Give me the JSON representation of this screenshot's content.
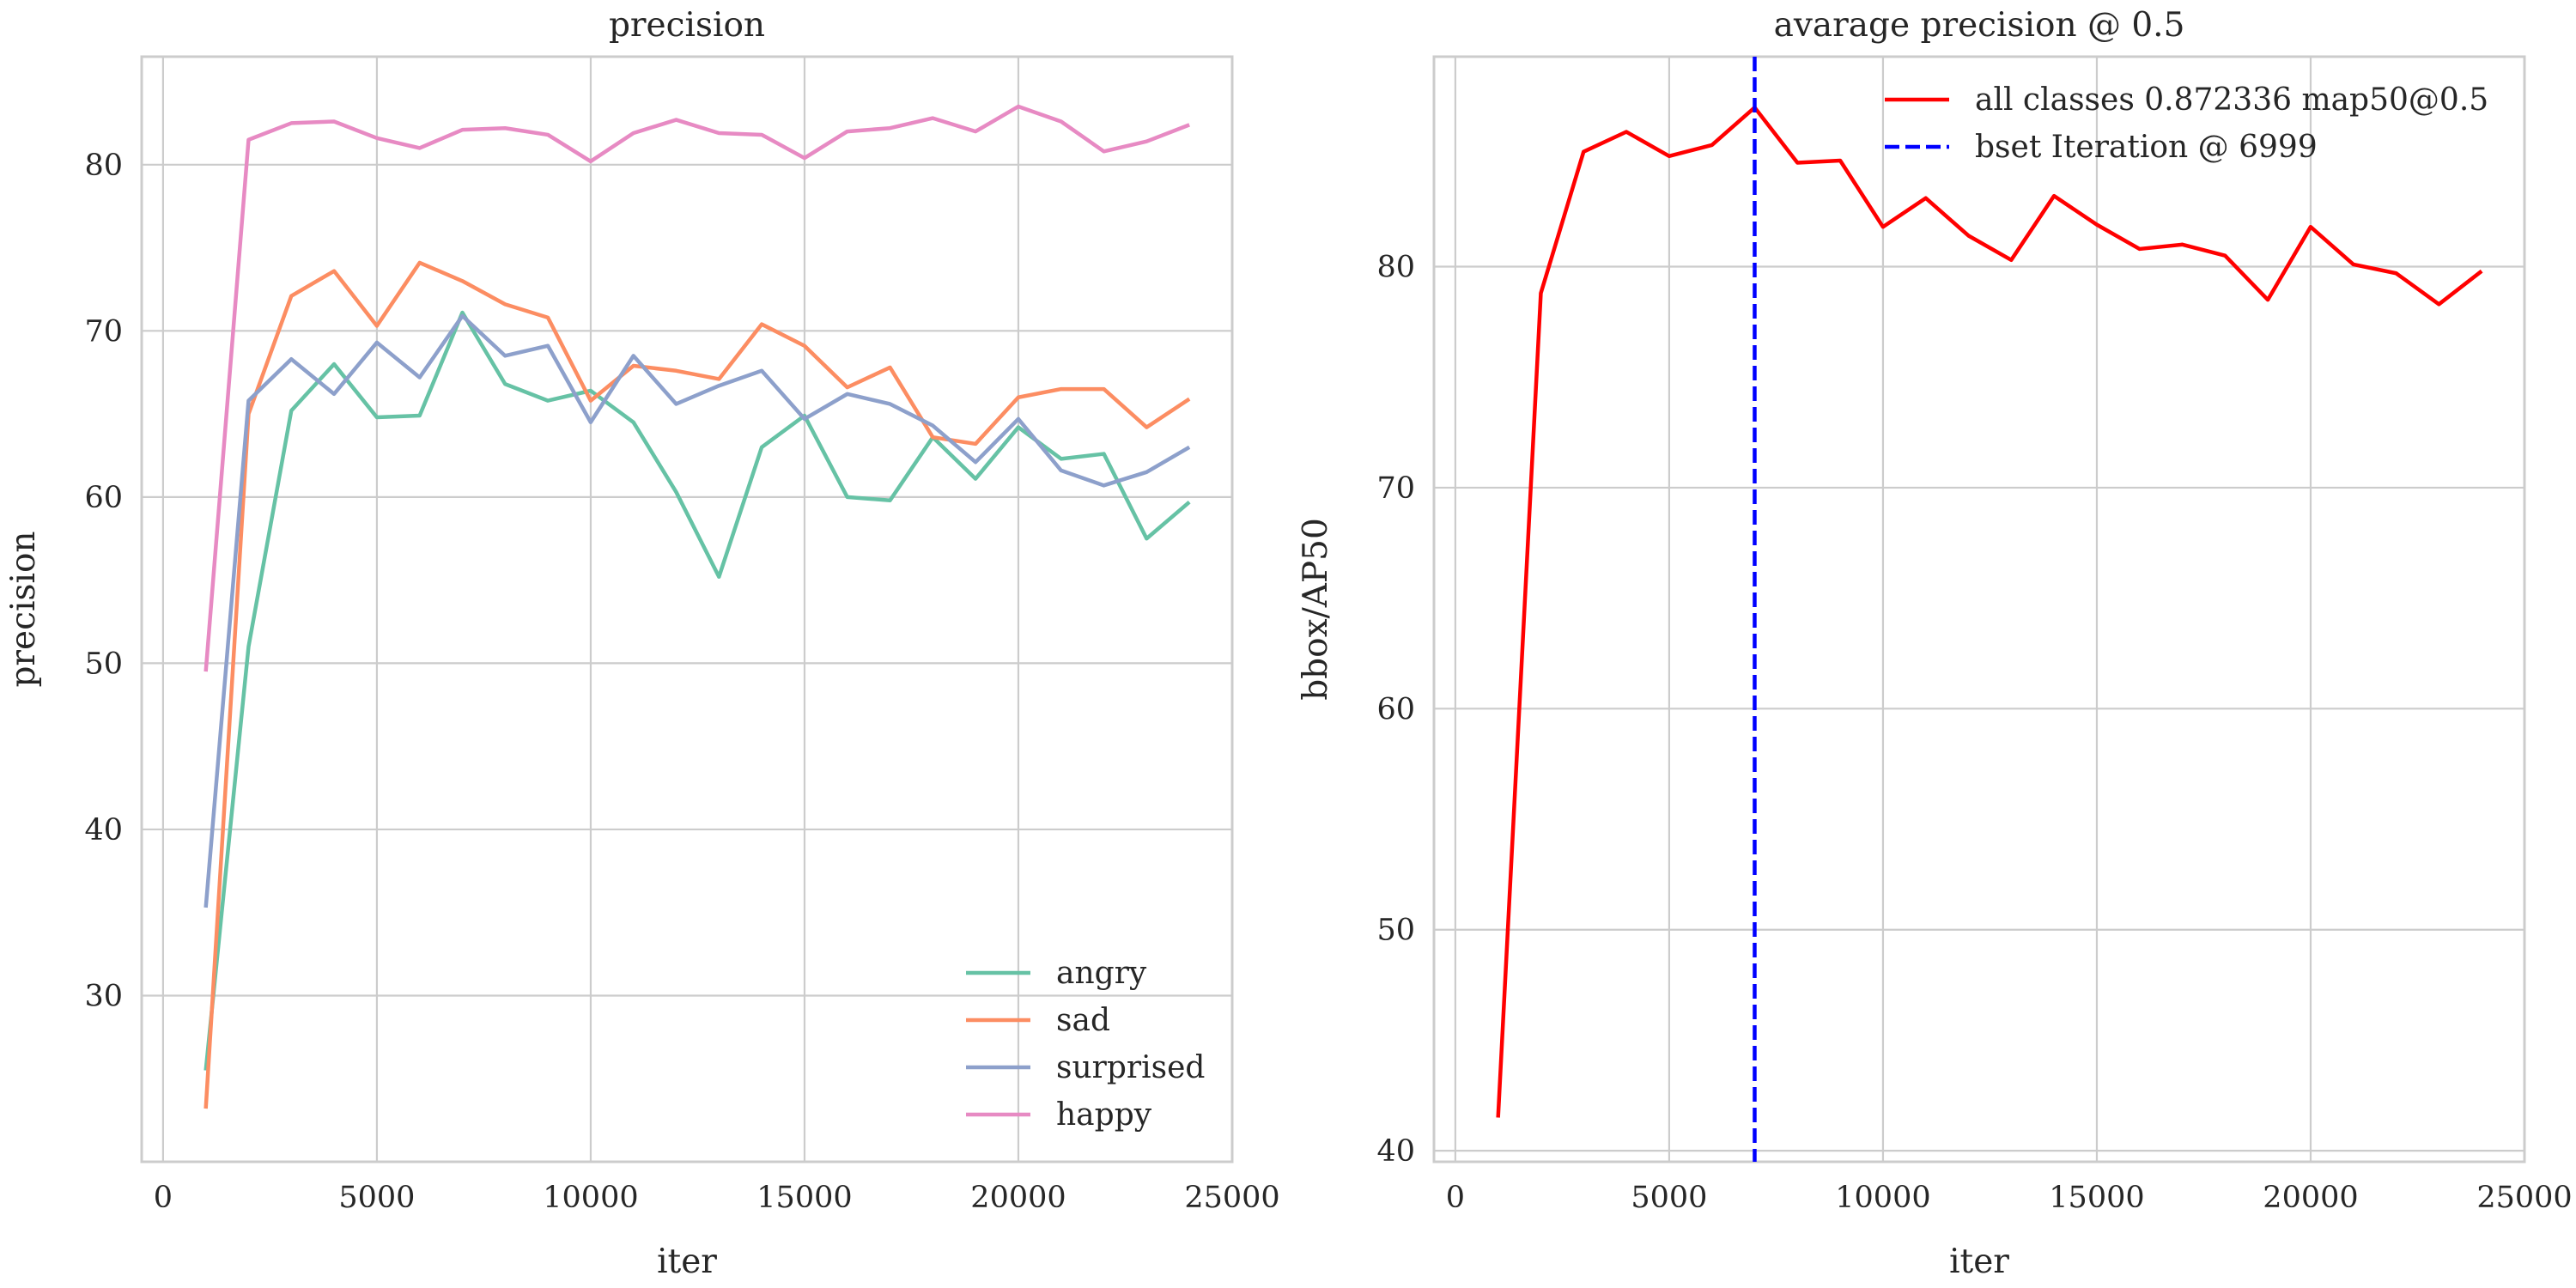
{
  "chart_data": [
    {
      "type": "line",
      "title": "precision",
      "xlabel": "iter",
      "ylabel": "precision",
      "xlim": [
        -500,
        25000
      ],
      "ylim": [
        20,
        86.5
      ],
      "xticks": [
        0,
        5000,
        10000,
        15000,
        20000,
        25000
      ],
      "yticks": [
        30,
        40,
        50,
        60,
        70,
        80
      ],
      "grid": true,
      "legend_position": "bottom-right",
      "x": [
        999,
        1999,
        2999,
        3999,
        4999,
        5999,
        6999,
        7999,
        8999,
        9999,
        10999,
        11999,
        12999,
        13999,
        14999,
        15999,
        16999,
        17999,
        18999,
        19999,
        20999,
        21999,
        22999,
        23999
      ],
      "series": [
        {
          "name": "angry",
          "color": "#66c2a5",
          "values": [
            25.5,
            51.0,
            65.2,
            68.0,
            64.8,
            64.9,
            71.1,
            66.8,
            65.8,
            66.4,
            64.5,
            60.3,
            55.2,
            63.0,
            64.9,
            60.0,
            59.8,
            63.6,
            61.1,
            64.2,
            62.3,
            62.6,
            57.5,
            59.7
          ]
        },
        {
          "name": "sad",
          "color": "#fc8d62",
          "values": [
            23.2,
            65.0,
            72.1,
            73.6,
            70.3,
            74.1,
            73.0,
            71.6,
            70.8,
            65.8,
            67.9,
            67.6,
            67.1,
            70.4,
            69.1,
            66.6,
            67.8,
            63.6,
            63.2,
            66.0,
            66.5,
            66.5,
            64.2,
            65.9
          ]
        },
        {
          "name": "surprised",
          "color": "#8da0cb",
          "values": [
            35.3,
            65.8,
            68.3,
            66.2,
            69.3,
            67.2,
            70.9,
            68.5,
            69.1,
            64.5,
            68.5,
            65.6,
            66.7,
            67.6,
            64.7,
            66.2,
            65.6,
            64.3,
            62.1,
            64.7,
            61.6,
            60.7,
            61.5,
            63.0
          ]
        },
        {
          "name": "happy",
          "color": "#e78ac3",
          "values": [
            49.5,
            81.5,
            82.5,
            82.6,
            81.6,
            81.0,
            82.1,
            82.2,
            81.8,
            80.2,
            81.9,
            82.7,
            81.9,
            81.8,
            80.4,
            82.0,
            82.2,
            82.8,
            82.0,
            83.5,
            82.6,
            80.8,
            81.4,
            82.4
          ]
        }
      ]
    },
    {
      "type": "line",
      "title": "avarage precision @ 0.5",
      "xlabel": "iter",
      "ylabel": "bbox/AP50",
      "xlim": [
        -500,
        25000
      ],
      "ylim": [
        39.5,
        89.5
      ],
      "xticks": [
        0,
        5000,
        10000,
        15000,
        20000,
        25000
      ],
      "yticks": [
        40,
        50,
        60,
        70,
        80
      ],
      "grid": true,
      "legend_position": "top-right",
      "x": [
        999,
        1999,
        2999,
        3999,
        4999,
        5999,
        6999,
        7999,
        8999,
        9999,
        10999,
        11999,
        12999,
        13999,
        14999,
        15999,
        16999,
        17999,
        18999,
        19999,
        20999,
        21999,
        22999,
        23999
      ],
      "series": [
        {
          "name": "all classes 0.872336 map50@0.5",
          "color": "#ff0000",
          "values": [
            41.5,
            78.8,
            85.2,
            86.1,
            85.0,
            85.5,
            87.2,
            84.7,
            84.8,
            81.8,
            83.1,
            81.4,
            80.3,
            83.2,
            81.9,
            80.8,
            81.0,
            80.5,
            78.5,
            81.8,
            80.1,
            79.7,
            78.3,
            79.8
          ]
        }
      ],
      "vline": {
        "name": "bset Iteration @ 6999",
        "x": 6999,
        "color": "#0000ff",
        "style": "dashed"
      }
    }
  ]
}
